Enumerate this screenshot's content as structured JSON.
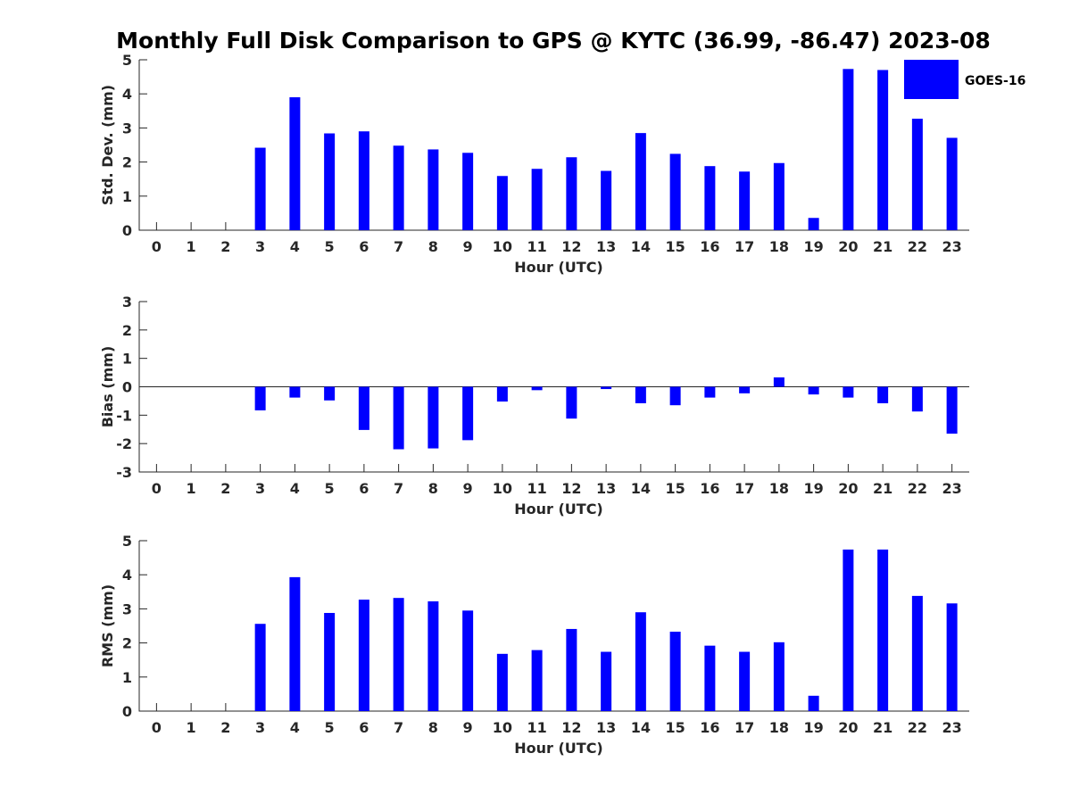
{
  "chart_data": {
    "type": "bar",
    "title": "Monthly Full Disk Comparison to GPS @ KYTC (36.99, -86.47) 2023-08",
    "legend": {
      "label": "GOES-16",
      "color": "#0000ff",
      "position": "top-right"
    },
    "panels": [
      {
        "id": "stddev",
        "ylabel": "Std. Dev. (mm)",
        "xlabel": "Hour (UTC)",
        "ylim": [
          0,
          5
        ],
        "yticks": [
          0,
          1,
          2,
          3,
          4,
          5
        ],
        "series": [
          {
            "name": "GOES-16",
            "x": [
              0,
              1,
              2,
              3,
              4,
              5,
              6,
              7,
              8,
              9,
              10,
              11,
              12,
              13,
              14,
              15,
              16,
              17,
              18,
              19,
              20,
              21,
              22,
              23
            ],
            "values": [
              null,
              null,
              null,
              2.42,
              3.9,
              2.84,
              2.9,
              2.48,
              2.37,
              2.27,
              1.59,
              1.8,
              2.14,
              1.74,
              2.85,
              2.24,
              1.88,
              1.72,
              1.97,
              0.36,
              4.73,
              4.7,
              3.27,
              2.71
            ]
          }
        ]
      },
      {
        "id": "bias",
        "ylabel": "Bias (mm)",
        "xlabel": "Hour (UTC)",
        "ylim": [
          -3,
          3
        ],
        "yticks": [
          -3,
          -2,
          -1,
          0,
          1,
          2,
          3
        ],
        "zero_line": true,
        "series": [
          {
            "name": "GOES-16",
            "x": [
              0,
              1,
              2,
              3,
              4,
              5,
              6,
              7,
              8,
              9,
              10,
              11,
              12,
              13,
              14,
              15,
              16,
              17,
              18,
              19,
              20,
              21,
              22,
              23
            ],
            "values": [
              null,
              null,
              null,
              -0.83,
              -0.38,
              -0.48,
              -1.52,
              -2.2,
              -2.17,
              -1.88,
              -0.52,
              -0.12,
              -1.12,
              -0.08,
              -0.58,
              -0.65,
              -0.38,
              -0.23,
              0.33,
              -0.27,
              -0.38,
              -0.58,
              -0.87,
              -1.65
            ]
          }
        ]
      },
      {
        "id": "rms",
        "ylabel": "RMS (mm)",
        "xlabel": "Hour (UTC)",
        "ylim": [
          0,
          5
        ],
        "yticks": [
          0,
          1,
          2,
          3,
          4,
          5
        ],
        "series": [
          {
            "name": "GOES-16",
            "x": [
              0,
              1,
              2,
              3,
              4,
              5,
              6,
              7,
              8,
              9,
              10,
              11,
              12,
              13,
              14,
              15,
              16,
              17,
              18,
              19,
              20,
              21,
              22,
              23
            ],
            "values": [
              null,
              null,
              null,
              2.56,
              3.93,
              2.88,
              3.27,
              3.32,
              3.22,
              2.95,
              1.68,
              1.79,
              2.41,
              1.74,
              2.9,
              2.33,
              1.92,
              1.74,
              2.02,
              0.45,
              4.74,
              4.74,
              3.38,
              3.16
            ]
          }
        ]
      }
    ],
    "xticks": [
      0,
      1,
      2,
      3,
      4,
      5,
      6,
      7,
      8,
      9,
      10,
      11,
      12,
      13,
      14,
      15,
      16,
      17,
      18,
      19,
      20,
      21,
      22,
      23
    ],
    "xlim": [
      -0.5,
      23.5
    ]
  }
}
